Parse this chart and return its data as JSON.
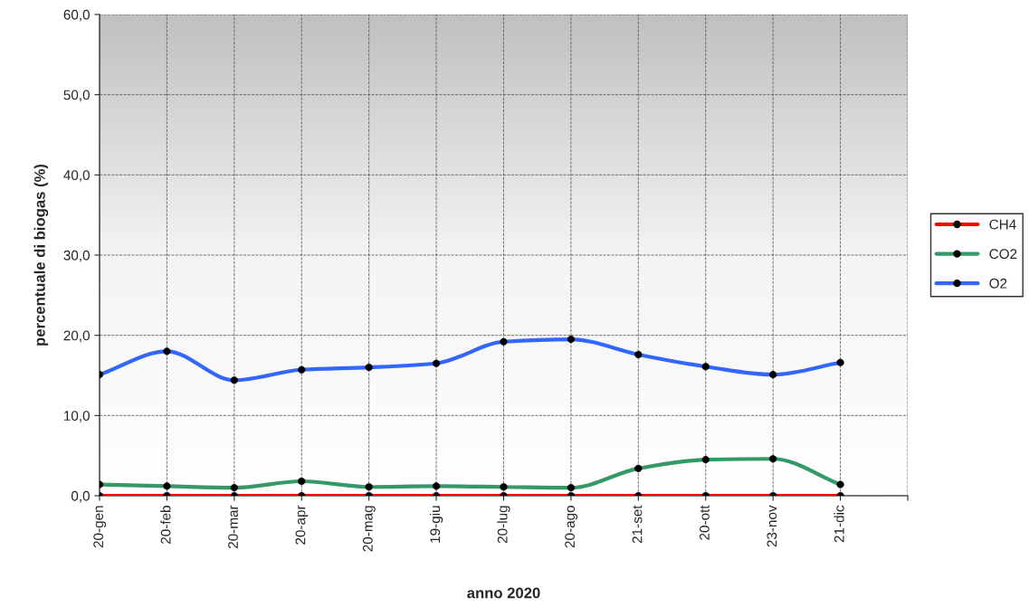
{
  "chart_data": {
    "type": "line",
    "xlabel": "anno 2020",
    "ylabel": "percentuale di biogas (%)",
    "categories": [
      "20-gen",
      "20-feb",
      "20-mar",
      "20-apr",
      "20-mag",
      "19-giu",
      "20-lug",
      "20-ago",
      "21-set",
      "20-ott",
      "23-nov",
      "21-dic",
      null
    ],
    "series": [
      {
        "name": "CH4",
        "color": "#ff0000",
        "values": [
          0,
          0,
          0,
          0,
          0,
          0,
          0,
          0,
          0,
          0,
          0,
          0,
          null
        ]
      },
      {
        "name": "CO2",
        "color": "#339966",
        "values": [
          1.4,
          1.2,
          1.0,
          1.8,
          1.1,
          1.2,
          1.1,
          1.0,
          3.4,
          4.5,
          4.6,
          1.4,
          null
        ]
      },
      {
        "name": "O2",
        "color": "#3366ff",
        "values": [
          15.1,
          18.0,
          14.4,
          15.7,
          16.0,
          16.5,
          19.2,
          19.5,
          17.6,
          16.1,
          15.1,
          16.6,
          null
        ]
      }
    ],
    "ylim": [
      0,
      60
    ],
    "yticks": [
      {
        "value": 0,
        "label": "0,0"
      },
      {
        "value": 10,
        "label": "10,0"
      },
      {
        "value": 20,
        "label": "20,0"
      },
      {
        "value": 30,
        "label": "30,0"
      },
      {
        "value": 40,
        "label": "40,0"
      },
      {
        "value": 50,
        "label": "50,0"
      },
      {
        "value": 60,
        "label": "60,0"
      }
    ],
    "grid": true,
    "legend": "right",
    "marker": "circle",
    "line_style": "solid"
  }
}
